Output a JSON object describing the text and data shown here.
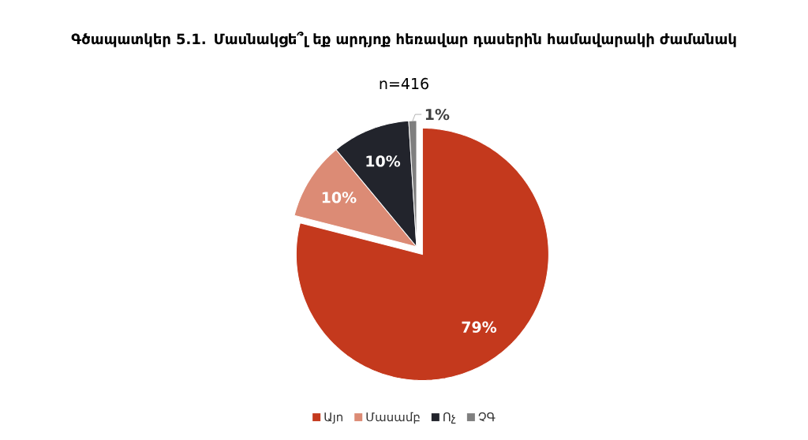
{
  "chart_data": {
    "type": "pie",
    "title": "Գծապատկեր 5.1. Մասնակցե՞լ եք արդյոք հեռավար դասերին համավարակի ժամանակ",
    "subtitle": "n=416",
    "categories": [
      "Այո",
      "Մասամբ",
      "Ոչ",
      "ՉԳ"
    ],
    "values": [
      79,
      10,
      10,
      1
    ],
    "colors": [
      "#c4391d",
      "#dc8b75",
      "#22242c",
      "#7f7f7f"
    ],
    "value_labels": [
      "79%",
      "10%",
      "10%",
      "1%"
    ],
    "legend": "bottom"
  }
}
